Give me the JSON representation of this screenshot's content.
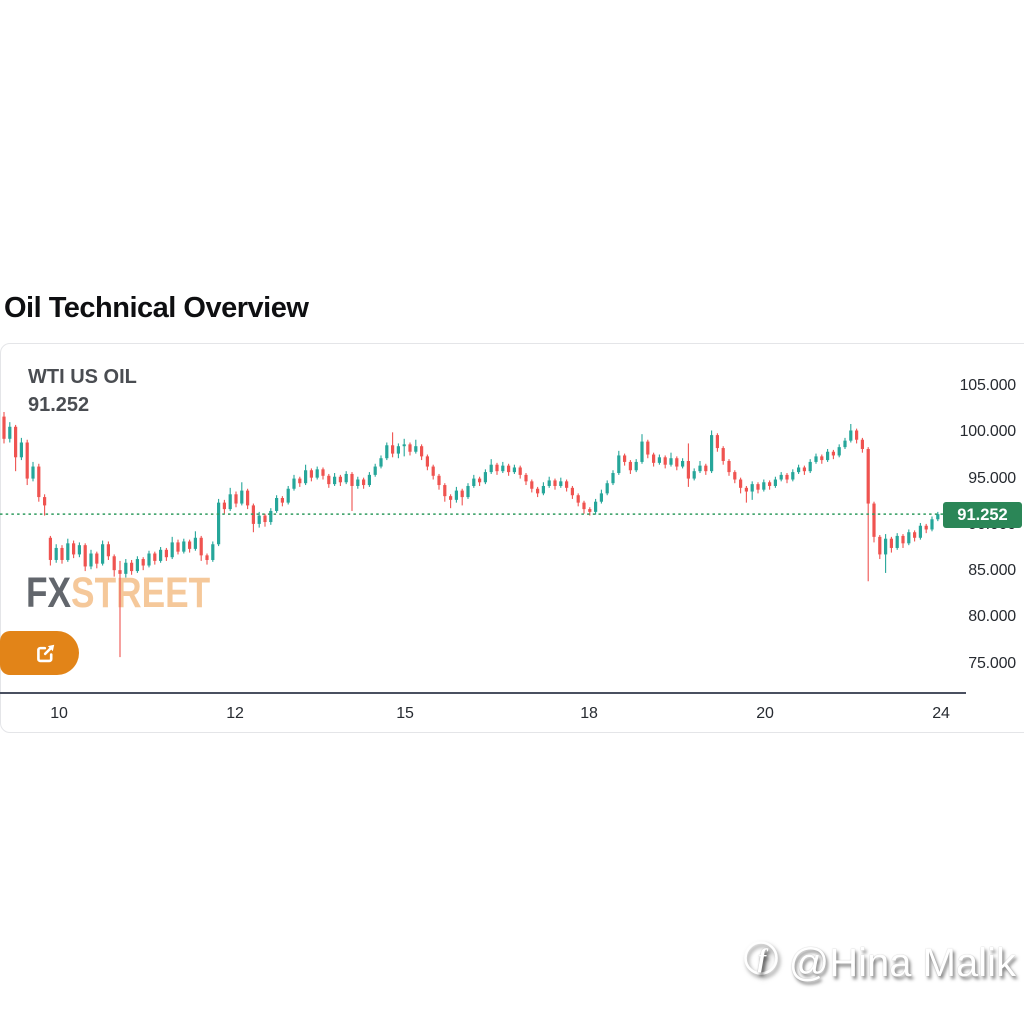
{
  "title": "Oil Technical Overview",
  "chart_panel": {
    "instrument": "WTI US OIL",
    "last_price_display": "91.252",
    "price_badge": "91.252",
    "watermark": {
      "part1": "FX",
      "part2": "STREET"
    },
    "external_button_icon": "external-link-icon",
    "colors": {
      "up": "#26a69a",
      "down": "#ef5350",
      "badge_background": "#2b8657",
      "last_price_line": "#2f9b5e",
      "time_axis_line": "#4a5060",
      "button_orange": "#e28418"
    },
    "y_axis": {
      "labels": [
        "105.000",
        "100.000",
        "95.000",
        "90.000",
        "85.000",
        "80.000",
        "75.000"
      ],
      "values": [
        105,
        100,
        95,
        90,
        85,
        80,
        75
      ]
    },
    "x_axis": {
      "labels": [
        "10",
        "12",
        "15",
        "18",
        "20",
        "24"
      ],
      "positions": [
        59,
        235,
        405,
        589,
        765,
        941
      ]
    }
  },
  "credit_watermark": {
    "icon": "facebook-icon",
    "handle": "@Hina Malik"
  },
  "chart_data": {
    "type": "candlestick",
    "title": "WTI US OIL",
    "series_name": "WTI US OIL",
    "last_price": 91.252,
    "x_tick_labels": [
      "10",
      "12",
      "15",
      "18",
      "20",
      "24"
    ],
    "y_tick_values": [
      105,
      100,
      95,
      90,
      85,
      80,
      75
    ],
    "ylim": [
      74,
      105.5
    ],
    "grid": false,
    "legend": false,
    "up_color": "#26a69a",
    "down_color": "#ef5350",
    "candles_format": [
      "open",
      "high",
      "low",
      "close"
    ],
    "candles": [
      [
        101.8,
        102.3,
        98.9,
        99.4
      ],
      [
        99.4,
        101.2,
        99.0,
        100.7
      ],
      [
        100.7,
        100.9,
        95.9,
        97.4
      ],
      [
        97.4,
        99.5,
        97.1,
        99.0
      ],
      [
        99.0,
        99.3,
        94.4,
        95.1
      ],
      [
        95.1,
        96.9,
        94.8,
        96.4
      ],
      [
        96.4,
        96.7,
        92.6,
        93.1
      ],
      [
        93.1,
        93.4,
        91.1,
        92.2
      ],
      [
        88.7,
        88.9,
        85.7,
        86.3
      ],
      [
        86.3,
        88.0,
        86.0,
        87.6
      ],
      [
        87.6,
        87.9,
        85.9,
        86.3
      ],
      [
        86.3,
        88.6,
        86.1,
        88.1
      ],
      [
        88.1,
        88.4,
        86.5,
        86.9
      ],
      [
        86.9,
        88.2,
        86.6,
        87.9
      ],
      [
        87.9,
        88.1,
        85.1,
        85.6
      ],
      [
        85.6,
        87.4,
        85.3,
        87.0
      ],
      [
        87.0,
        87.2,
        85.4,
        85.9
      ],
      [
        85.9,
        88.4,
        85.7,
        88.0
      ],
      [
        88.0,
        88.3,
        86.3,
        86.7
      ],
      [
        86.7,
        86.9,
        84.5,
        85.2
      ],
      [
        85.2,
        86.2,
        75.8,
        84.8
      ],
      [
        84.8,
        86.4,
        84.4,
        86.0
      ],
      [
        86.0,
        86.3,
        84.7,
        85.1
      ],
      [
        85.1,
        86.7,
        84.9,
        86.4
      ],
      [
        86.4,
        86.6,
        85.2,
        85.7
      ],
      [
        85.7,
        87.3,
        85.5,
        87.0
      ],
      [
        87.0,
        87.2,
        85.8,
        86.2
      ],
      [
        86.2,
        87.7,
        86.0,
        87.4
      ],
      [
        87.4,
        87.6,
        86.2,
        86.6
      ],
      [
        86.6,
        88.8,
        86.4,
        88.2
      ],
      [
        88.2,
        88.5,
        86.9,
        87.2
      ],
      [
        87.2,
        88.6,
        87.0,
        88.3
      ],
      [
        88.3,
        88.5,
        87.1,
        87.5
      ],
      [
        87.5,
        89.4,
        87.3,
        88.7
      ],
      [
        88.7,
        88.9,
        86.2,
        86.8
      ],
      [
        86.8,
        87.0,
        85.8,
        86.3
      ],
      [
        86.3,
        88.3,
        86.1,
        88.0
      ],
      [
        88.0,
        92.9,
        87.8,
        92.5
      ],
      [
        92.5,
        92.8,
        91.3,
        91.8
      ],
      [
        91.8,
        94.1,
        91.6,
        93.4
      ],
      [
        93.4,
        93.7,
        92.0,
        92.4
      ],
      [
        92.4,
        94.7,
        92.2,
        93.8
      ],
      [
        93.8,
        94.0,
        91.8,
        92.2
      ],
      [
        92.2,
        92.4,
        89.3,
        90.2
      ],
      [
        90.2,
        91.5,
        89.8,
        91.1
      ],
      [
        91.1,
        91.3,
        89.9,
        90.4
      ],
      [
        90.4,
        91.9,
        90.1,
        91.6
      ],
      [
        91.6,
        93.3,
        91.4,
        93.0
      ],
      [
        93.0,
        93.2,
        92.1,
        92.5
      ],
      [
        92.5,
        94.3,
        92.3,
        94.0
      ],
      [
        94.0,
        95.5,
        93.8,
        95.1
      ],
      [
        95.1,
        95.3,
        94.2,
        94.6
      ],
      [
        94.6,
        96.6,
        94.4,
        96.0
      ],
      [
        96.0,
        96.2,
        94.8,
        95.2
      ],
      [
        95.2,
        96.4,
        95.0,
        96.1
      ],
      [
        96.1,
        96.3,
        95.0,
        95.4
      ],
      [
        95.4,
        95.6,
        94.1,
        94.5
      ],
      [
        94.5,
        95.7,
        94.3,
        95.3
      ],
      [
        95.3,
        95.5,
        94.3,
        94.7
      ],
      [
        94.7,
        95.9,
        94.5,
        95.6
      ],
      [
        95.6,
        95.8,
        91.6,
        94.3
      ],
      [
        94.3,
        95.3,
        94.0,
        95.0
      ],
      [
        95.0,
        95.2,
        94.0,
        94.4
      ],
      [
        94.4,
        95.8,
        94.2,
        95.5
      ],
      [
        95.5,
        96.7,
        95.3,
        96.4
      ],
      [
        96.4,
        97.6,
        96.2,
        97.3
      ],
      [
        97.3,
        99.0,
        97.1,
        98.7
      ],
      [
        98.7,
        100.1,
        97.4,
        97.8
      ],
      [
        97.8,
        98.9,
        97.3,
        98.6
      ],
      [
        98.6,
        99.4,
        97.5,
        98.8
      ],
      [
        98.8,
        99.0,
        97.6,
        98.0
      ],
      [
        98.0,
        99.3,
        97.8,
        98.6
      ],
      [
        98.6,
        98.8,
        97.1,
        97.5
      ],
      [
        97.5,
        97.7,
        96.0,
        96.4
      ],
      [
        96.4,
        96.6,
        95.0,
        95.4
      ],
      [
        95.4,
        95.6,
        93.9,
        94.4
      ],
      [
        94.4,
        94.6,
        92.6,
        93.2
      ],
      [
        93.2,
        93.4,
        91.9,
        92.8
      ],
      [
        92.8,
        94.2,
        92.5,
        93.8
      ],
      [
        93.8,
        94.0,
        92.2,
        93.1
      ],
      [
        93.1,
        94.6,
        92.9,
        94.3
      ],
      [
        94.3,
        95.5,
        94.1,
        95.1
      ],
      [
        95.1,
        95.3,
        94.3,
        94.7
      ],
      [
        94.7,
        96.1,
        94.5,
        95.8
      ],
      [
        95.8,
        97.2,
        95.6,
        96.6
      ],
      [
        96.6,
        96.8,
        95.5,
        95.9
      ],
      [
        95.9,
        96.9,
        95.7,
        96.5
      ],
      [
        96.5,
        96.7,
        95.4,
        95.8
      ],
      [
        95.8,
        96.6,
        95.6,
        96.3
      ],
      [
        96.3,
        96.5,
        95.1,
        95.5
      ],
      [
        95.5,
        95.7,
        94.4,
        94.8
      ],
      [
        94.8,
        95.0,
        93.6,
        94.0
      ],
      [
        94.0,
        94.2,
        93.1,
        93.5
      ],
      [
        93.5,
        94.7,
        93.3,
        94.3
      ],
      [
        94.3,
        95.3,
        94.1,
        94.9
      ],
      [
        94.9,
        95.1,
        93.9,
        94.3
      ],
      [
        94.3,
        95.2,
        94.1,
        94.8
      ],
      [
        94.8,
        95.0,
        93.7,
        94.1
      ],
      [
        94.1,
        94.3,
        92.9,
        93.3
      ],
      [
        93.3,
        93.5,
        92.1,
        92.5
      ],
      [
        92.5,
        92.7,
        91.3,
        91.8
      ],
      [
        91.8,
        92.0,
        91.1,
        91.5
      ],
      [
        91.5,
        92.9,
        91.2,
        92.6
      ],
      [
        92.6,
        93.9,
        92.4,
        93.5
      ],
      [
        93.5,
        94.9,
        93.3,
        94.6
      ],
      [
        94.6,
        96.0,
        94.4,
        95.7
      ],
      [
        95.7,
        98.1,
        95.5,
        97.6
      ],
      [
        97.6,
        97.8,
        96.5,
        96.9
      ],
      [
        96.9,
        97.1,
        95.6,
        96.0
      ],
      [
        96.0,
        97.2,
        95.8,
        96.9
      ],
      [
        96.9,
        99.9,
        96.7,
        99.1
      ],
      [
        99.1,
        99.3,
        97.3,
        97.7
      ],
      [
        97.7,
        97.9,
        96.4,
        96.8
      ],
      [
        96.8,
        97.7,
        96.6,
        97.4
      ],
      [
        97.4,
        97.6,
        96.2,
        96.6
      ],
      [
        96.6,
        97.9,
        96.4,
        97.3
      ],
      [
        97.3,
        97.5,
        96.0,
        96.4
      ],
      [
        96.4,
        97.3,
        96.2,
        97.0
      ],
      [
        97.0,
        98.9,
        94.2,
        95.1
      ],
      [
        95.1,
        96.2,
        94.9,
        95.9
      ],
      [
        95.9,
        97.0,
        95.7,
        96.5
      ],
      [
        96.5,
        96.7,
        95.5,
        95.9
      ],
      [
        95.9,
        100.3,
        95.7,
        99.8
      ],
      [
        99.8,
        100.0,
        98.0,
        98.4
      ],
      [
        98.4,
        98.6,
        96.6,
        97.0
      ],
      [
        97.0,
        97.2,
        95.4,
        95.8
      ],
      [
        95.8,
        96.0,
        94.6,
        95.0
      ],
      [
        95.0,
        95.2,
        93.5,
        94.1
      ],
      [
        94.1,
        94.3,
        92.5,
        93.7
      ],
      [
        93.7,
        94.8,
        92.8,
        94.5
      ],
      [
        94.5,
        94.7,
        93.5,
        93.9
      ],
      [
        93.9,
        95.0,
        93.7,
        94.7
      ],
      [
        94.7,
        94.9,
        93.9,
        94.3
      ],
      [
        94.3,
        95.3,
        94.1,
        95.0
      ],
      [
        95.0,
        95.8,
        94.8,
        95.5
      ],
      [
        95.5,
        95.7,
        94.6,
        95.0
      ],
      [
        95.0,
        96.1,
        94.8,
        95.8
      ],
      [
        95.8,
        96.6,
        95.6,
        96.3
      ],
      [
        96.3,
        96.5,
        95.5,
        95.9
      ],
      [
        95.9,
        97.2,
        95.7,
        96.9
      ],
      [
        96.9,
        97.8,
        96.7,
        97.5
      ],
      [
        97.5,
        97.7,
        96.7,
        97.1
      ],
      [
        97.1,
        98.3,
        96.9,
        98.0
      ],
      [
        98.0,
        98.2,
        97.2,
        97.6
      ],
      [
        97.6,
        98.8,
        97.4,
        98.5
      ],
      [
        98.5,
        99.5,
        98.3,
        99.2
      ],
      [
        99.2,
        101.0,
        99.0,
        100.3
      ],
      [
        100.3,
        100.5,
        98.9,
        99.3
      ],
      [
        99.3,
        99.5,
        97.9,
        98.3
      ],
      [
        98.3,
        98.5,
        84.0,
        92.4
      ],
      [
        92.4,
        92.6,
        88.2,
        88.8
      ],
      [
        88.8,
        89.0,
        86.4,
        86.9
      ],
      [
        86.9,
        89.1,
        84.9,
        88.6
      ],
      [
        88.6,
        88.8,
        87.1,
        87.6
      ],
      [
        87.6,
        89.2,
        87.4,
        88.9
      ],
      [
        88.9,
        89.1,
        87.6,
        88.1
      ],
      [
        88.1,
        89.6,
        87.9,
        89.3
      ],
      [
        89.3,
        89.5,
        88.3,
        88.7
      ],
      [
        88.7,
        90.3,
        88.5,
        90.0
      ],
      [
        90.0,
        90.2,
        89.2,
        89.6
      ],
      [
        89.6,
        91.0,
        89.4,
        90.7
      ],
      [
        90.7,
        91.5,
        90.5,
        91.252
      ]
    ]
  }
}
